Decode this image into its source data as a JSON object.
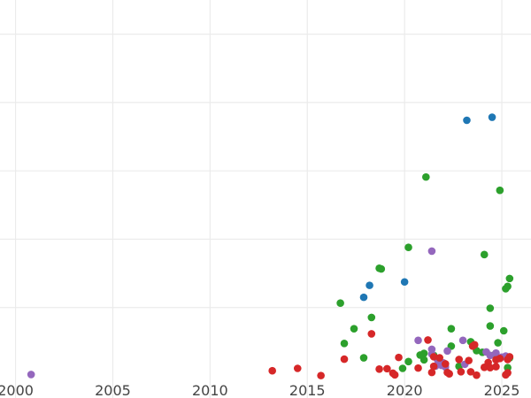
{
  "chart_data": {
    "type": "scatter",
    "title": "",
    "xlabel": "",
    "ylabel": "",
    "xlim": [
      1999.2,
      2026.5
    ],
    "ylim": [
      0,
      1.1
    ],
    "x_ticks": [
      2000,
      2005,
      2010,
      2015,
      2020,
      2025
    ],
    "x_tick_labels": [
      "2000",
      "2005",
      "2010",
      "2015",
      "2020",
      "2025"
    ],
    "y_gridlines": [
      0.2,
      0.4,
      0.6,
      0.8,
      1.0
    ],
    "y_tick_labels_visible": false,
    "grid": true,
    "legend": "none",
    "colors": {
      "blue": "#1f77b4",
      "green": "#2ca02c",
      "red": "#d62728",
      "purple": "#9467bd"
    },
    "series": [
      {
        "color": "blue",
        "points": [
          [
            2023.2,
            0.748
          ],
          [
            2024.5,
            0.757
          ],
          [
            2018.2,
            0.265
          ],
          [
            2017.9,
            0.23
          ],
          [
            2020.0,
            0.275
          ]
        ]
      },
      {
        "color": "green",
        "points": [
          [
            2021.1,
            0.582
          ],
          [
            2024.9,
            0.543
          ],
          [
            2020.2,
            0.376
          ],
          [
            2024.1,
            0.355
          ],
          [
            2018.7,
            0.315
          ],
          [
            2018.8,
            0.313
          ],
          [
            2025.4,
            0.285
          ],
          [
            2025.3,
            0.262
          ],
          [
            2025.2,
            0.255
          ],
          [
            2016.7,
            0.213
          ],
          [
            2024.4,
            0.198
          ],
          [
            2018.3,
            0.171
          ],
          [
            2024.4,
            0.146
          ],
          [
            2017.4,
            0.138
          ],
          [
            2022.4,
            0.138
          ],
          [
            2025.1,
            0.132
          ],
          [
            2016.9,
            0.095
          ],
          [
            2023.4,
            0.1
          ],
          [
            2024.8,
            0.097
          ],
          [
            2022.4,
            0.087
          ],
          [
            2023.7,
            0.074
          ],
          [
            2024.0,
            0.069
          ],
          [
            2021.0,
            0.066
          ],
          [
            2020.8,
            0.061
          ],
          [
            2017.9,
            0.053
          ],
          [
            2020.2,
            0.042
          ],
          [
            2021.0,
            0.047
          ],
          [
            2025.4,
            0.053
          ],
          [
            2019.9,
            0.022
          ],
          [
            2022.8,
            0.028
          ],
          [
            2025.3,
            0.024
          ],
          [
            2021.5,
            0.06
          ],
          [
            2024.6,
            0.061
          ]
        ]
      },
      {
        "color": "purple",
        "points": [
          [
            2000.8,
            0.004
          ],
          [
            2021.4,
            0.365
          ],
          [
            2020.7,
            0.104
          ],
          [
            2023.0,
            0.104
          ],
          [
            2021.4,
            0.078
          ],
          [
            2022.2,
            0.073
          ],
          [
            2024.2,
            0.07
          ],
          [
            2024.7,
            0.067
          ],
          [
            2025.2,
            0.058
          ],
          [
            2021.4,
            0.064
          ],
          [
            2021.7,
            0.047
          ],
          [
            2022.0,
            0.038
          ],
          [
            2021.9,
            0.031
          ],
          [
            2021.6,
            0.029
          ],
          [
            2023.1,
            0.034
          ],
          [
            2022.1,
            0.026
          ],
          [
            2024.4,
            0.06
          ],
          [
            2025.0,
            0.055
          ]
        ]
      },
      {
        "color": "red",
        "points": [
          [
            2013.2,
            0.015
          ],
          [
            2014.5,
            0.022
          ],
          [
            2015.7,
            0.001
          ],
          [
            2016.9,
            0.049
          ],
          [
            2018.3,
            0.123
          ],
          [
            2018.7,
            0.02
          ],
          [
            2019.1,
            0.021
          ],
          [
            2019.4,
            0.008
          ],
          [
            2019.5,
            0.003
          ],
          [
            2019.7,
            0.054
          ],
          [
            2020.7,
            0.023
          ],
          [
            2021.2,
            0.105
          ],
          [
            2021.5,
            0.056
          ],
          [
            2021.5,
            0.028
          ],
          [
            2021.4,
            0.01
          ],
          [
            2021.8,
            0.053
          ],
          [
            2022.1,
            0.035
          ],
          [
            2022.2,
            0.01
          ],
          [
            2022.3,
            0.006
          ],
          [
            2022.8,
            0.048
          ],
          [
            2022.9,
            0.012
          ],
          [
            2023.3,
            0.045
          ],
          [
            2023.4,
            0.012
          ],
          [
            2023.5,
            0.087
          ],
          [
            2023.6,
            0.091
          ],
          [
            2023.7,
            0.002
          ],
          [
            2024.1,
            0.025
          ],
          [
            2024.3,
            0.039
          ],
          [
            2024.4,
            0.024
          ],
          [
            2024.7,
            0.027
          ],
          [
            2024.7,
            0.047
          ],
          [
            2024.9,
            0.051
          ],
          [
            2025.2,
            0.003
          ],
          [
            2025.3,
            0.009
          ],
          [
            2025.3,
            0.048
          ],
          [
            2025.4,
            0.056
          ]
        ]
      }
    ]
  }
}
